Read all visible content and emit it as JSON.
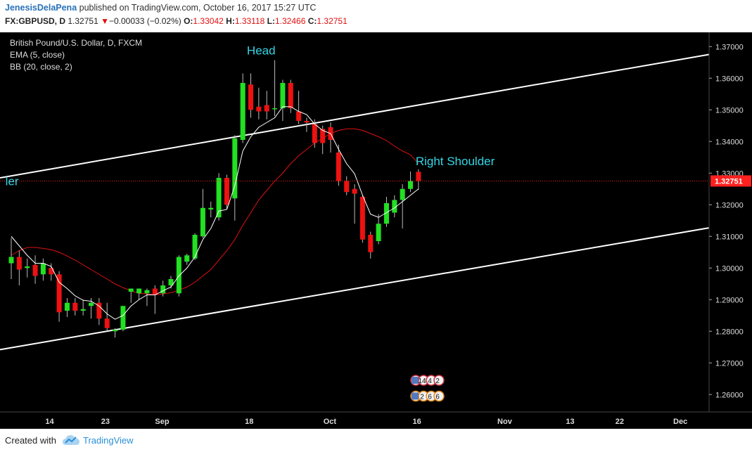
{
  "header": {
    "author": "JenesisDelaPena",
    "published_text": "published on TradingView.com, October 16, 2017 15:27 UTC",
    "symbol": "FX:GBPUSD, D",
    "last": "1.32751",
    "change_arrow": "▼",
    "change": "−0.00033 (−0.02%)",
    "open_label": "O:",
    "open": "1.33042",
    "high_label": "H:",
    "high": "1.33118",
    "low_label": "L:",
    "low": "1.32466",
    "close_label": "C:",
    "close": "1.32751"
  },
  "legend": {
    "title": "British Pound/U.S. Dollar, D, FXCM",
    "ema": "EMA (5, close)",
    "bb": "BB (20, close, 2)"
  },
  "footer": {
    "created_with": "Created with",
    "brand": "TradingView"
  },
  "colors": {
    "background": "#000000",
    "up_candle": "#22e022",
    "down_candle": "#ee1111",
    "ema": "#ffffff",
    "bb_basis": "#dd1111",
    "trendline": "#ffffff",
    "annotation": "#33d6e6",
    "price_tag": "#ff2020"
  },
  "chart_data": {
    "type": "candlestick",
    "title": "British Pound/U.S. Dollar, D, FXCM",
    "ylim": [
      1.2545,
      1.3745
    ],
    "y_ticks": [
      "1.37000",
      "1.36000",
      "1.35000",
      "1.34000",
      "1.33000",
      "1.32000",
      "1.31000",
      "1.30000",
      "1.29000",
      "1.28000",
      "1.27000",
      "1.26000"
    ],
    "x_ticks": [
      "14",
      "23",
      "Sep",
      "18",
      "Oct",
      "16",
      "Nov",
      "13",
      "22",
      "Dec"
    ],
    "current_price": "1.32751",
    "annotations": [
      "Head",
      "Right Shoulder",
      "ler"
    ],
    "badges": [
      "14",
      "4",
      "2",
      "2",
      "6",
      "6",
      "2"
    ],
    "candles": [
      {
        "o": 1.3015,
        "h": 1.3095,
        "l": 1.2965,
        "c": 1.3035
      },
      {
        "o": 1.3035,
        "h": 1.3055,
        "l": 1.2945,
        "c": 1.2995
      },
      {
        "o": 1.3,
        "h": 1.303,
        "l": 1.297,
        "c": 1.3005
      },
      {
        "o": 1.301,
        "h": 1.304,
        "l": 1.295,
        "c": 1.2975
      },
      {
        "o": 1.298,
        "h": 1.303,
        "l": 1.296,
        "c": 1.3015
      },
      {
        "o": 1.3,
        "h": 1.3015,
        "l": 1.296,
        "c": 1.298
      },
      {
        "o": 1.298,
        "h": 1.299,
        "l": 1.283,
        "c": 1.286
      },
      {
        "o": 1.2865,
        "h": 1.2905,
        "l": 1.2845,
        "c": 1.289
      },
      {
        "o": 1.289,
        "h": 1.2905,
        "l": 1.285,
        "c": 1.2865
      },
      {
        "o": 1.2865,
        "h": 1.29,
        "l": 1.285,
        "c": 1.287
      },
      {
        "o": 1.288,
        "h": 1.2905,
        "l": 1.284,
        "c": 1.289
      },
      {
        "o": 1.289,
        "h": 1.2905,
        "l": 1.282,
        "c": 1.284
      },
      {
        "o": 1.284,
        "h": 1.289,
        "l": 1.28,
        "c": 1.281
      },
      {
        "o": 1.28,
        "h": 1.281,
        "l": 1.278,
        "c": 1.2805
      },
      {
        "o": 1.2805,
        "h": 1.288,
        "l": 1.28,
        "c": 1.288
      },
      {
        "o": 1.2925,
        "h": 1.2935,
        "l": 1.289,
        "c": 1.2935
      },
      {
        "o": 1.292,
        "h": 1.2935,
        "l": 1.29,
        "c": 1.2935
      },
      {
        "o": 1.292,
        "h": 1.2935,
        "l": 1.288,
        "c": 1.293
      },
      {
        "o": 1.2935,
        "h": 1.2945,
        "l": 1.2855,
        "c": 1.2915
      },
      {
        "o": 1.292,
        "h": 1.296,
        "l": 1.291,
        "c": 1.2945
      },
      {
        "o": 1.2945,
        "h": 1.2975,
        "l": 1.2935,
        "c": 1.2965
      },
      {
        "o": 1.292,
        "h": 1.304,
        "l": 1.291,
        "c": 1.3035
      },
      {
        "o": 1.302,
        "h": 1.3045,
        "l": 1.301,
        "c": 1.304
      },
      {
        "o": 1.303,
        "h": 1.311,
        "l": 1.3025,
        "c": 1.3105
      },
      {
        "o": 1.31,
        "h": 1.325,
        "l": 1.3095,
        "c": 1.319
      },
      {
        "o": 1.3185,
        "h": 1.321,
        "l": 1.316,
        "c": 1.319
      },
      {
        "o": 1.316,
        "h": 1.33,
        "l": 1.315,
        "c": 1.3285
      },
      {
        "o": 1.3285,
        "h": 1.3295,
        "l": 1.3185,
        "c": 1.32
      },
      {
        "o": 1.322,
        "h": 1.342,
        "l": 1.315,
        "c": 1.341
      },
      {
        "o": 1.3405,
        "h": 1.3615,
        "l": 1.3395,
        "c": 1.3585
      },
      {
        "o": 1.358,
        "h": 1.3615,
        "l": 1.3475,
        "c": 1.35
      },
      {
        "o": 1.351,
        "h": 1.357,
        "l": 1.347,
        "c": 1.3495
      },
      {
        "o": 1.3515,
        "h": 1.356,
        "l": 1.347,
        "c": 1.3495
      },
      {
        "o": 1.3505,
        "h": 1.3657,
        "l": 1.348,
        "c": 1.3505
      },
      {
        "o": 1.3505,
        "h": 1.3595,
        "l": 1.3465,
        "c": 1.3585
      },
      {
        "o": 1.3585,
        "h": 1.3595,
        "l": 1.349,
        "c": 1.3505
      },
      {
        "o": 1.3495,
        "h": 1.356,
        "l": 1.3455,
        "c": 1.3465
      },
      {
        "o": 1.3465,
        "h": 1.3475,
        "l": 1.343,
        "c": 1.346
      },
      {
        "o": 1.3455,
        "h": 1.347,
        "l": 1.338,
        "c": 1.3395
      },
      {
        "o": 1.344,
        "h": 1.345,
        "l": 1.336,
        "c": 1.3395
      },
      {
        "o": 1.3445,
        "h": 1.346,
        "l": 1.3365,
        "c": 1.3405
      },
      {
        "o": 1.3365,
        "h": 1.339,
        "l": 1.326,
        "c": 1.3275
      },
      {
        "o": 1.3275,
        "h": 1.329,
        "l": 1.323,
        "c": 1.324
      },
      {
        "o": 1.325,
        "h": 1.3265,
        "l": 1.314,
        "c": 1.3235
      },
      {
        "o": 1.3225,
        "h": 1.323,
        "l": 1.308,
        "c": 1.309
      },
      {
        "o": 1.3105,
        "h": 1.3115,
        "l": 1.303,
        "c": 1.305
      },
      {
        "o": 1.3085,
        "h": 1.317,
        "l": 1.3075,
        "c": 1.314
      },
      {
        "o": 1.314,
        "h": 1.3225,
        "l": 1.313,
        "c": 1.3205
      },
      {
        "o": 1.3175,
        "h": 1.323,
        "l": 1.316,
        "c": 1.3215
      },
      {
        "o": 1.3215,
        "h": 1.3265,
        "l": 1.3125,
        "c": 1.325
      },
      {
        "o": 1.325,
        "h": 1.3305,
        "l": 1.324,
        "c": 1.3275
      },
      {
        "o": 1.3304,
        "h": 1.3312,
        "l": 1.3247,
        "c": 1.3275
      }
    ],
    "ema_5": [
      1.31,
      1.307,
      1.304,
      1.3015,
      1.3015,
      1.3005,
      1.2955,
      1.2935,
      1.2912,
      1.2898,
      1.2895,
      1.288,
      1.2855,
      1.2838,
      1.285,
      1.288,
      1.29,
      1.2915,
      1.2915,
      1.2928,
      1.294,
      1.2975,
      1.3,
      1.3035,
      1.309,
      1.3125,
      1.318,
      1.3185,
      1.326,
      1.337,
      1.3415,
      1.3445,
      1.346,
      1.3475,
      1.351,
      1.351,
      1.3495,
      1.3485,
      1.3455,
      1.3435,
      1.3425,
      1.3375,
      1.333,
      1.3298,
      1.323,
      1.317,
      1.316,
      1.3175,
      1.319,
      1.321,
      1.323,
      1.325
    ],
    "bb_basis_20": [
      1.304,
      1.3055,
      1.3065,
      1.3065,
      1.3062,
      1.3058,
      1.305,
      1.3038,
      1.3025,
      1.301,
      1.2995,
      1.298,
      1.2965,
      1.295,
      1.2938,
      1.2928,
      1.292,
      1.2918,
      1.2915,
      1.2918,
      1.2922,
      1.293,
      1.294,
      1.2955,
      1.2975,
      1.2995,
      1.3025,
      1.3055,
      1.309,
      1.3135,
      1.3175,
      1.3215,
      1.3245,
      1.3275,
      1.33,
      1.333,
      1.3355,
      1.3375,
      1.3395,
      1.341,
      1.3425,
      1.3435,
      1.344,
      1.344,
      1.3435,
      1.3425,
      1.3415,
      1.3403,
      1.3385,
      1.337,
      1.3358,
      1.333
    ]
  }
}
